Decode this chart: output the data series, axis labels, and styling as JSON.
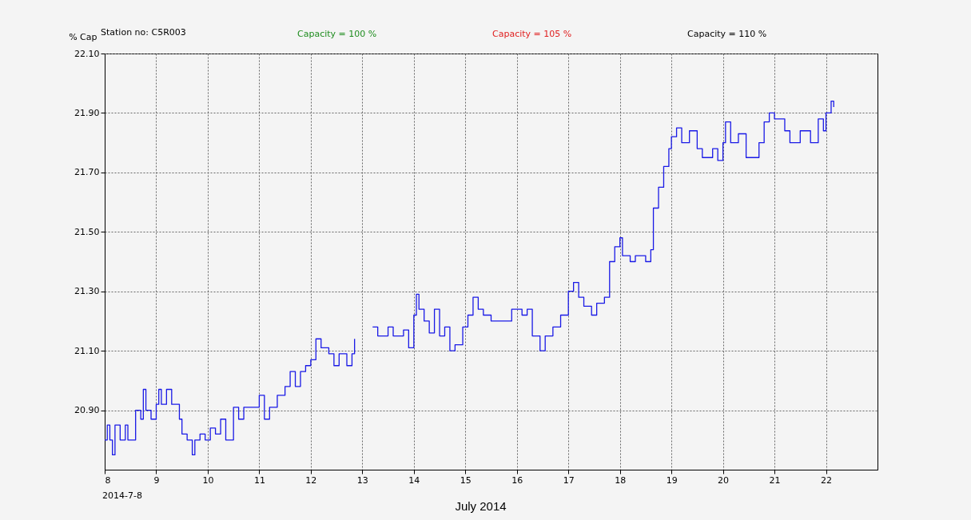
{
  "chart_data": {
    "type": "step",
    "xlabel": "July 2014",
    "ylabel": "% Cap",
    "annotations": [
      "Station no: C5R003",
      "Capacity = 100 %",
      "Capacity = 105 %",
      "Capacity = 110 %",
      "2014-7-8"
    ],
    "x": [
      8.0,
      8.05,
      8.1,
      8.15,
      8.2,
      8.3,
      8.4,
      8.45,
      8.55,
      8.6,
      8.7,
      8.75,
      8.8,
      8.9,
      9.0,
      9.05,
      9.1,
      9.2,
      9.3,
      9.45,
      9.5,
      9.6,
      9.7,
      9.75,
      9.85,
      9.95,
      10.05,
      10.15,
      10.25,
      10.35,
      10.5,
      10.6,
      10.7,
      10.9,
      11.0,
      11.1,
      11.2,
      11.35,
      11.5,
      11.6,
      11.7,
      11.8,
      11.9,
      12.0,
      12.1,
      12.2,
      12.35,
      12.45,
      12.55,
      12.7,
      12.8,
      12.85,
      13.0,
      13.2,
      13.3,
      13.5,
      13.6,
      13.8,
      13.9,
      14.0,
      14.05,
      14.1,
      14.2,
      14.3,
      14.4,
      14.5,
      14.6,
      14.7,
      14.8,
      14.95,
      15.05,
      15.15,
      15.25,
      15.35,
      15.5,
      15.8,
      15.9,
      16.1,
      16.2,
      16.3,
      16.45,
      16.55,
      16.7,
      16.85,
      17.0,
      17.1,
      17.2,
      17.3,
      17.45,
      17.55,
      17.7,
      17.8,
      17.9,
      18.0,
      18.05,
      18.2,
      18.3,
      18.5,
      18.6,
      18.65,
      18.75,
      18.85,
      18.95,
      19.0,
      19.1,
      19.2,
      19.35,
      19.5,
      19.6,
      19.8,
      19.9,
      20.0,
      20.05,
      20.15,
      20.3,
      20.45,
      20.6,
      20.7,
      20.8,
      20.9,
      21.0,
      21.2,
      21.3,
      21.5,
      21.7,
      21.85,
      21.95,
      22.0,
      22.1,
      22.15
    ],
    "series": [
      {
        "color": "#1a1ae6",
        "values": [
          20.8,
          20.85,
          20.8,
          20.75,
          20.85,
          20.8,
          20.85,
          20.8,
          20.8,
          20.9,
          20.87,
          20.97,
          20.9,
          20.87,
          20.92,
          20.97,
          20.92,
          20.97,
          20.92,
          20.87,
          20.82,
          20.8,
          20.75,
          20.8,
          20.82,
          20.8,
          20.84,
          20.82,
          20.87,
          20.8,
          20.91,
          20.87,
          20.91,
          20.91,
          20.95,
          20.87,
          20.91,
          20.95,
          20.98,
          21.03,
          20.98,
          21.03,
          21.05,
          21.07,
          21.14,
          21.11,
          21.09,
          21.05,
          21.09,
          21.05,
          21.09,
          21.14,
          null,
          21.18,
          21.15,
          21.18,
          21.15,
          21.17,
          21.11,
          21.22,
          21.29,
          21.24,
          21.2,
          21.16,
          21.24,
          21.15,
          21.18,
          21.1,
          21.12,
          21.18,
          21.22,
          21.28,
          21.24,
          21.22,
          21.2,
          21.2,
          21.24,
          21.22,
          21.24,
          21.15,
          21.1,
          21.15,
          21.18,
          21.22,
          21.3,
          21.33,
          21.28,
          21.25,
          21.22,
          21.26,
          21.28,
          21.4,
          21.45,
          21.48,
          21.42,
          21.4,
          21.42,
          21.4,
          21.44,
          21.58,
          21.65,
          21.72,
          21.78,
          21.82,
          21.85,
          21.8,
          21.84,
          21.78,
          21.75,
          21.78,
          21.74,
          21.8,
          21.87,
          21.8,
          21.83,
          21.75,
          21.75,
          21.8,
          21.87,
          21.9,
          21.88,
          21.84,
          21.8,
          21.84,
          21.8,
          21.88,
          21.84,
          21.9,
          21.94,
          21.92
        ]
      }
    ],
    "xlim": [
      8,
      23
    ],
    "xticks": [
      8,
      9,
      10,
      11,
      12,
      13,
      14,
      15,
      16,
      17,
      18,
      19,
      20,
      21,
      22
    ],
    "ylim": [
      20.7,
      22.1
    ],
    "yticks": [
      {
        "value": 20.9,
        "label": "20.90"
      },
      {
        "value": 21.1,
        "label": "21.10"
      },
      {
        "value": 21.3,
        "label": "21.30"
      },
      {
        "value": 21.5,
        "label": "21.50"
      },
      {
        "value": 21.7,
        "label": "21.70"
      },
      {
        "value": 21.9,
        "label": "21.90"
      },
      {
        "value": 22.1,
        "label": "22.10"
      }
    ],
    "grid": true,
    "marker": "none",
    "line_style": "solid"
  }
}
